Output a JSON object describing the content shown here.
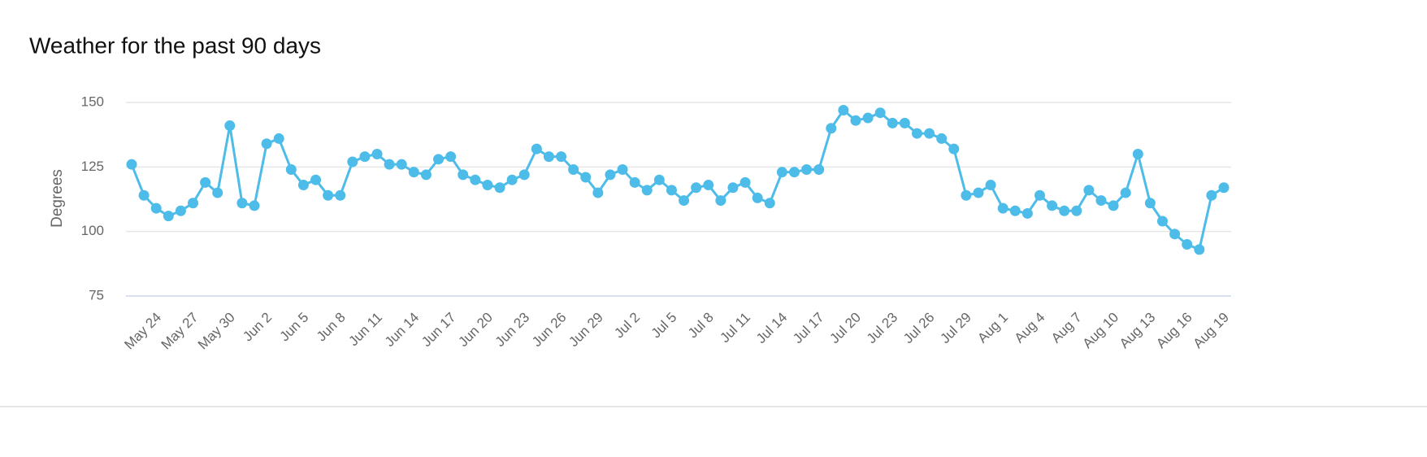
{
  "chart_data": {
    "type": "line",
    "title": "Weather for the past 90 days",
    "y_label": "Degrees",
    "categories": [
      null,
      null,
      "May 24",
      null,
      null,
      "May 27",
      null,
      null,
      "May 30",
      null,
      null,
      "Jun 2",
      null,
      null,
      "Jun 5",
      null,
      null,
      "Jun 8",
      null,
      null,
      "Jun 11",
      null,
      null,
      "Jun 14",
      null,
      null,
      "Jun 17",
      null,
      null,
      "Jun 20",
      null,
      null,
      "Jun 23",
      null,
      null,
      "Jun 26",
      null,
      null,
      "Jun 29",
      null,
      null,
      "Jul 2",
      null,
      null,
      "Jul 5",
      null,
      null,
      "Jul 8",
      null,
      null,
      "Jul 11",
      null,
      null,
      "Jul 14",
      null,
      null,
      "Jul 17",
      null,
      null,
      "Jul 20",
      null,
      null,
      "Jul 23",
      null,
      null,
      "Jul 26",
      null,
      null,
      "Jul 29",
      null,
      null,
      "Aug 1",
      null,
      null,
      "Aug 4",
      null,
      null,
      "Aug 7",
      null,
      null,
      "Aug 10",
      null,
      null,
      "Aug 13",
      null,
      null,
      "Aug 16",
      null,
      null,
      "Aug 19"
    ],
    "values": [
      126,
      114,
      109,
      106,
      108,
      111,
      119,
      115,
      141,
      111,
      110,
      134,
      136,
      124,
      118,
      120,
      114,
      114,
      127,
      129,
      130,
      126,
      126,
      123,
      122,
      128,
      129,
      122,
      120,
      118,
      117,
      120,
      122,
      132,
      129,
      129,
      124,
      121,
      115,
      122,
      124,
      119,
      116,
      120,
      116,
      112,
      117,
      118,
      112,
      117,
      119,
      113,
      111,
      123,
      123,
      124,
      124,
      140,
      147,
      143,
      144,
      146,
      142,
      142,
      138,
      138,
      136,
      132,
      114,
      115,
      118,
      109,
      108,
      107,
      114,
      110,
      108,
      108,
      116,
      112,
      110,
      115,
      130,
      111,
      104,
      99,
      95,
      93,
      114,
      117
    ],
    "color": "#4dbce9",
    "ylim": [
      75,
      150
    ],
    "yticks": [
      75,
      100,
      125,
      150
    ],
    "grid": true
  }
}
